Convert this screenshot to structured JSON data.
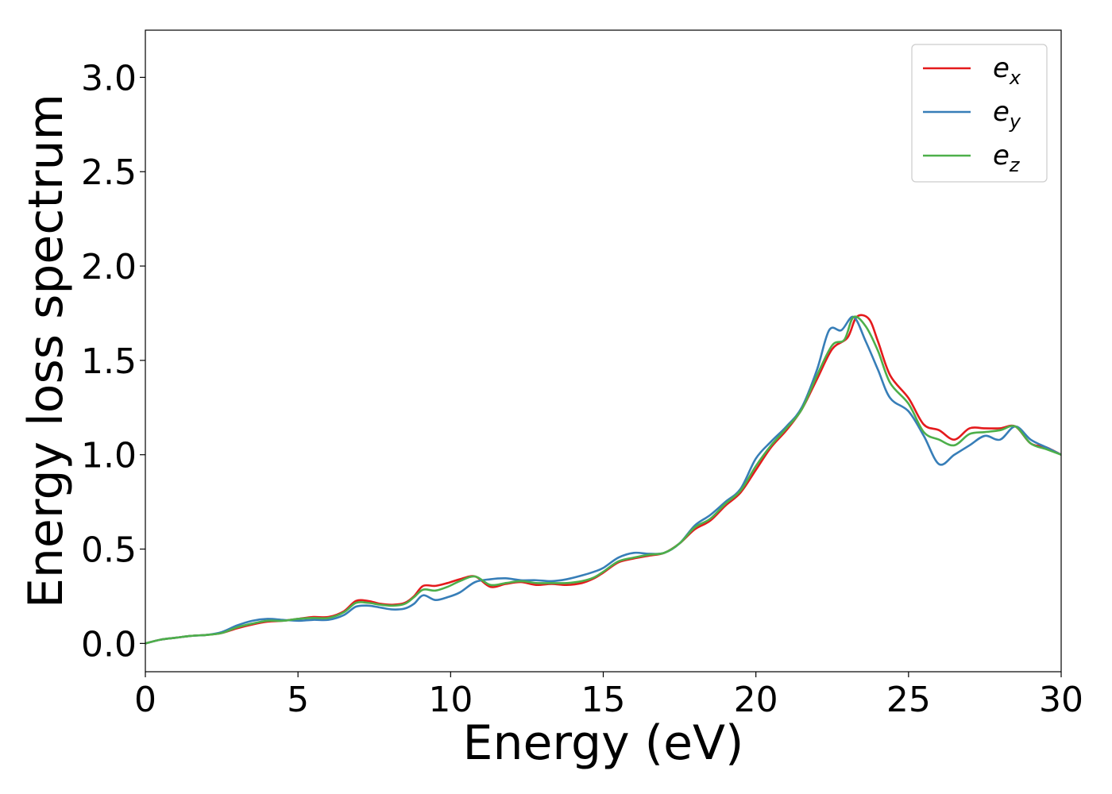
{
  "chart_data": {
    "type": "line",
    "xlabel": "Energy (eV)",
    "ylabel": "Energy loss spectrum",
    "xlim": [
      0,
      30
    ],
    "ylim": [
      -0.15,
      3.25
    ],
    "xticks": [
      0,
      5,
      10,
      15,
      20,
      25,
      30
    ],
    "xtick_labels": [
      "0",
      "5",
      "10",
      "15",
      "20",
      "25",
      "30"
    ],
    "yticks": [
      0.0,
      0.5,
      1.0,
      1.5,
      2.0,
      2.5,
      3.0
    ],
    "ytick_labels": [
      "0.0",
      "0.5",
      "1.0",
      "1.5",
      "2.0",
      "2.5",
      "3.0"
    ],
    "grid": false,
    "legend_position": "top-right",
    "series": [
      {
        "name": "e_x",
        "label_base": "e",
        "label_sub": "x",
        "color": "#e41a1c",
        "x": [
          0,
          0.5,
          1,
          1.5,
          2,
          2.5,
          3,
          3.5,
          4,
          4.5,
          5,
          5.5,
          6,
          6.5,
          6.9,
          7.3,
          7.7,
          8.1,
          8.5,
          8.8,
          9.1,
          9.5,
          9.9,
          10.3,
          10.8,
          11.3,
          11.8,
          12.3,
          12.8,
          13.3,
          13.8,
          14.3,
          14.7,
          15,
          15.5,
          16,
          16.5,
          17,
          17.5,
          18,
          18.5,
          19,
          19.5,
          20,
          20.5,
          21,
          21.5,
          22,
          22.5,
          23,
          23.3,
          23.7,
          24,
          24.4,
          25,
          25.5,
          26,
          26.5,
          27,
          27.5,
          28,
          28.5,
          29,
          29.5,
          30
        ],
        "y": [
          0.0,
          0.02,
          0.03,
          0.04,
          0.045,
          0.055,
          0.08,
          0.1,
          0.115,
          0.12,
          0.13,
          0.14,
          0.14,
          0.17,
          0.225,
          0.225,
          0.21,
          0.205,
          0.215,
          0.25,
          0.305,
          0.305,
          0.32,
          0.34,
          0.355,
          0.3,
          0.315,
          0.325,
          0.31,
          0.315,
          0.31,
          0.32,
          0.345,
          0.375,
          0.43,
          0.45,
          0.465,
          0.48,
          0.53,
          0.605,
          0.65,
          0.73,
          0.8,
          0.92,
          1.04,
          1.13,
          1.24,
          1.4,
          1.56,
          1.62,
          1.73,
          1.72,
          1.6,
          1.42,
          1.3,
          1.16,
          1.13,
          1.08,
          1.14,
          1.14,
          1.14,
          1.15,
          1.06,
          1.04,
          1.0
        ]
      },
      {
        "name": "e_y",
        "label_base": "e",
        "label_sub": "y",
        "color": "#377eb8",
        "x": [
          0,
          0.5,
          1,
          1.5,
          2,
          2.5,
          3,
          3.5,
          4,
          4.5,
          5,
          5.5,
          6,
          6.5,
          6.9,
          7.3,
          7.7,
          8.1,
          8.5,
          8.8,
          9.1,
          9.5,
          9.9,
          10.3,
          10.8,
          11.3,
          11.8,
          12.3,
          12.8,
          13.3,
          13.8,
          14.3,
          14.7,
          15,
          15.5,
          16,
          16.5,
          17,
          17.5,
          18,
          18.5,
          19,
          19.5,
          20,
          20.5,
          21,
          21.5,
          22,
          22.4,
          22.8,
          23.2,
          23.6,
          24,
          24.4,
          25,
          25.5,
          26,
          26.5,
          27,
          27.5,
          28,
          28.5,
          29,
          29.5,
          30
        ],
        "y": [
          0.0,
          0.02,
          0.03,
          0.04,
          0.045,
          0.06,
          0.095,
          0.12,
          0.13,
          0.125,
          0.12,
          0.125,
          0.125,
          0.15,
          0.195,
          0.2,
          0.19,
          0.18,
          0.185,
          0.21,
          0.255,
          0.23,
          0.245,
          0.27,
          0.325,
          0.34,
          0.345,
          0.335,
          0.335,
          0.33,
          0.34,
          0.36,
          0.38,
          0.4,
          0.455,
          0.48,
          0.475,
          0.48,
          0.53,
          0.625,
          0.68,
          0.75,
          0.82,
          0.98,
          1.07,
          1.15,
          1.25,
          1.45,
          1.66,
          1.66,
          1.73,
          1.6,
          1.45,
          1.3,
          1.23,
          1.1,
          0.95,
          1.0,
          1.05,
          1.1,
          1.08,
          1.15,
          1.08,
          1.04,
          1.0
        ]
      },
      {
        "name": "e_z",
        "label_base": "e",
        "label_sub": "z",
        "color": "#4daf4a",
        "x": [
          0,
          0.5,
          1,
          1.5,
          2,
          2.5,
          3,
          3.5,
          4,
          4.5,
          5,
          5.5,
          6,
          6.5,
          6.9,
          7.3,
          7.7,
          8.1,
          8.5,
          8.8,
          9.1,
          9.5,
          9.9,
          10.3,
          10.8,
          11.3,
          11.8,
          12.3,
          12.8,
          13.3,
          13.8,
          14.3,
          14.7,
          15,
          15.5,
          16,
          16.5,
          17,
          17.5,
          18,
          18.5,
          19,
          19.5,
          20,
          20.5,
          21,
          21.5,
          22,
          22.5,
          22.9,
          23.2,
          23.6,
          24,
          24.4,
          25,
          25.5,
          26,
          26.5,
          27,
          27.5,
          28,
          28.5,
          29,
          29.5,
          30
        ],
        "y": [
          0.0,
          0.02,
          0.03,
          0.04,
          0.045,
          0.055,
          0.085,
          0.105,
          0.12,
          0.12,
          0.13,
          0.135,
          0.135,
          0.165,
          0.215,
          0.215,
          0.205,
          0.2,
          0.21,
          0.245,
          0.285,
          0.28,
          0.3,
          0.33,
          0.355,
          0.31,
          0.32,
          0.33,
          0.32,
          0.32,
          0.32,
          0.33,
          0.35,
          0.38,
          0.435,
          0.455,
          0.47,
          0.48,
          0.53,
          0.615,
          0.66,
          0.74,
          0.81,
          0.94,
          1.05,
          1.14,
          1.24,
          1.42,
          1.58,
          1.61,
          1.73,
          1.68,
          1.55,
          1.38,
          1.27,
          1.12,
          1.08,
          1.05,
          1.11,
          1.12,
          1.13,
          1.15,
          1.06,
          1.03,
          1.0
        ]
      }
    ]
  }
}
